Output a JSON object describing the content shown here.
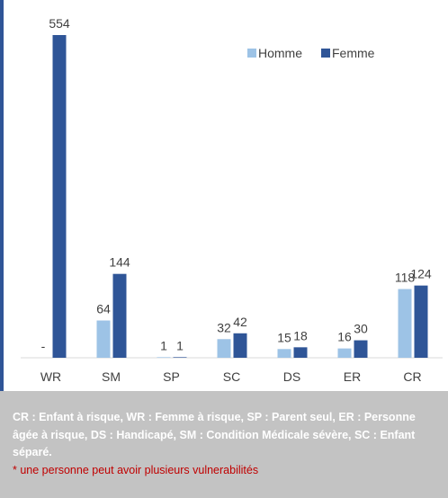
{
  "chart_data": {
    "type": "bar",
    "categories": [
      "WR",
      "SM",
      "SP",
      "SC",
      "DS",
      "ER",
      "CR"
    ],
    "series": [
      {
        "name": "Homme",
        "color": "#9dc3e6",
        "values": [
          null,
          64,
          1,
          32,
          15,
          16,
          118
        ],
        "value_labels": [
          "-",
          "64",
          "1",
          "32",
          "15",
          "16",
          "118"
        ]
      },
      {
        "name": "Femme",
        "color": "#2f5597",
        "values": [
          554,
          144,
          1,
          42,
          18,
          30,
          124
        ]
      }
    ],
    "legend": "top-right"
  },
  "footer": {
    "description": "CR : Enfant à risque, WR : Femme à risque, SP : Parent seul, ER : Personne âgée à risque, DS : Handicapé, SM : Condition Médicale sévère, SC : Enfant séparé.",
    "note": "* une personne peut avoir plusieurs vulnerabilités"
  }
}
